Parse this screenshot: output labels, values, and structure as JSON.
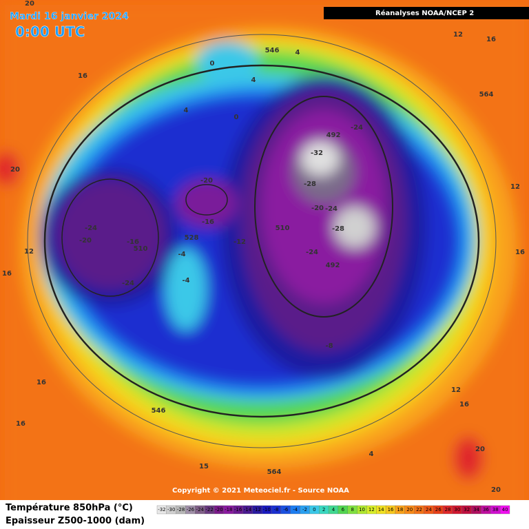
{
  "header": {
    "date": "Mardi 16 janvier 2024",
    "time": "0:00 UTC",
    "source": "Réanalyses NOAA/NCEP 2"
  },
  "copyright": "Copyright © 2021 Meteociel.fr - Source NOAA",
  "legend": {
    "line1": "Température 850hPa (°C)",
    "line2": "Epaisseur Z500-1000 (dam)",
    "scale": [
      -32,
      -30,
      -28,
      -26,
      -24,
      -22,
      -20,
      -18,
      -16,
      -14,
      -12,
      -10,
      -8,
      -6,
      -4,
      -2,
      0,
      2,
      4,
      6,
      8,
      10,
      12,
      14,
      16,
      18,
      20,
      22,
      24,
      26,
      28,
      30,
      32,
      34,
      36,
      38,
      40
    ]
  },
  "contour_labels": [
    "20",
    "16",
    "20",
    "12",
    "16",
    "16",
    "16",
    "0",
    "4",
    "4",
    "546",
    "4",
    "0",
    "12",
    "16",
    "564",
    "12",
    "16",
    "12",
    "16",
    "20",
    "20",
    "4",
    "564",
    "15",
    "546",
    "492",
    "-32",
    "-24",
    "-28",
    "-20",
    "-20",
    "-24",
    "-28",
    "510",
    "-24",
    "-20",
    "-16",
    "510",
    "-24",
    "-16",
    "-12",
    "528",
    "-4",
    "-4",
    "-24",
    "492",
    "-8"
  ]
}
